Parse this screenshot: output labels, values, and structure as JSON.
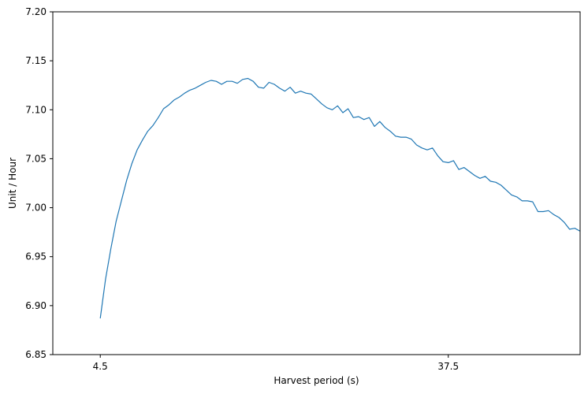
{
  "chart_data": {
    "type": "line",
    "title": "",
    "xlabel": "Harvest period (s)",
    "ylabel": "Unit / Hour",
    "xlim": [
      0.0,
      50.0
    ],
    "ylim": [
      6.85,
      7.2
    ],
    "xticks": [
      4.5,
      37.5
    ],
    "xtick_labels": [
      "4.5",
      "37.5"
    ],
    "yticks": [
      6.85,
      6.9,
      6.95,
      7.0,
      7.05,
      7.1,
      7.15,
      7.2
    ],
    "ytick_labels": [
      "6.85",
      "6.90",
      "6.95",
      "7.00",
      "7.05",
      "7.10",
      "7.15",
      "7.20"
    ],
    "grid": false,
    "legend": "none",
    "line_color": "#1f77b4",
    "series": [
      {
        "x": [
          4.5,
          5.0,
          5.5,
          6.0,
          6.5,
          7.0,
          7.5,
          8.0,
          8.5,
          9.0,
          9.5,
          10.0,
          10.5,
          11.0,
          11.5,
          12.0,
          12.5,
          13.0,
          13.5,
          14.0,
          14.5,
          15.0,
          15.5,
          16.0,
          16.5,
          17.0,
          17.5,
          18.0,
          18.5,
          19.0,
          19.5,
          20.0,
          20.5,
          21.0,
          21.5,
          22.0,
          22.5,
          23.0,
          23.5,
          24.0,
          24.5,
          25.0,
          25.5,
          26.0,
          26.5,
          27.0,
          27.5,
          28.0,
          28.5,
          29.0,
          29.5,
          30.0,
          30.5,
          31.0,
          31.5,
          32.0,
          32.5,
          33.0,
          33.5,
          34.0,
          34.5,
          35.0,
          35.5,
          36.0,
          36.5,
          37.0,
          37.5,
          38.0,
          38.5,
          39.0,
          39.5,
          40.0,
          40.5,
          41.0,
          41.5,
          42.0,
          42.5,
          43.0,
          43.5,
          44.0,
          44.5,
          45.0,
          45.5,
          46.0,
          46.5,
          47.0,
          47.5,
          48.0,
          48.5,
          49.0,
          49.5,
          50.0
        ],
        "y": [
          6.887,
          6.927,
          6.958,
          6.986,
          7.007,
          7.028,
          7.045,
          7.059,
          7.069,
          7.078,
          7.084,
          7.092,
          7.101,
          7.105,
          7.11,
          7.113,
          7.117,
          7.12,
          7.122,
          7.125,
          7.128,
          7.13,
          7.129,
          7.126,
          7.129,
          7.129,
          7.127,
          7.131,
          7.132,
          7.129,
          7.123,
          7.122,
          7.128,
          7.126,
          7.122,
          7.119,
          7.123,
          7.117,
          7.119,
          7.117,
          7.116,
          7.111,
          7.106,
          7.102,
          7.1,
          7.104,
          7.097,
          7.101,
          7.092,
          7.093,
          7.09,
          7.092,
          7.083,
          7.088,
          7.082,
          7.078,
          7.073,
          7.072,
          7.072,
          7.07,
          7.064,
          7.061,
          7.059,
          7.061,
          7.053,
          7.047,
          7.046,
          7.048,
          7.039,
          7.041,
          7.037,
          7.033,
          7.03,
          7.032,
          7.027,
          7.026,
          7.023,
          7.018,
          7.013,
          7.011,
          7.007,
          7.007,
          7.006,
          6.996,
          6.996,
          6.997,
          6.993,
          6.99,
          6.985,
          6.978,
          6.979,
          6.976
        ]
      }
    ]
  }
}
